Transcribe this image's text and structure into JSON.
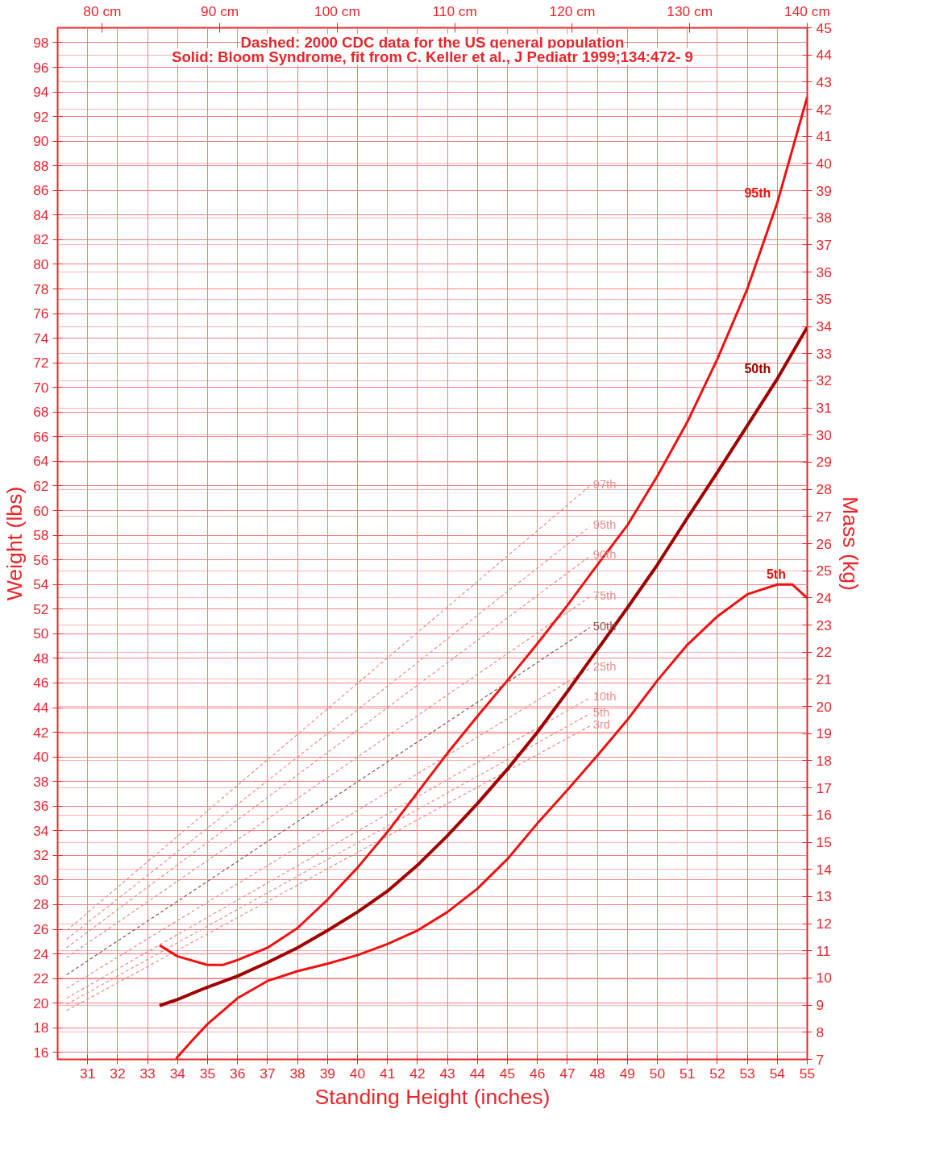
{
  "chart_data": {
    "type": "line",
    "title": "Dashed: 2000 CDC data for the US general population",
    "subtitle": "Solid: Bloom Syndrome, fit from C. Keller et al., J Pediatr 1999;134:472- 9",
    "xlabel": "Standing Height (inches)",
    "ylabel": "Weight (lbs)",
    "y2label": "Mass (kg)",
    "xlim": [
      30,
      55
    ],
    "xticks": [
      31,
      32,
      33,
      34,
      35,
      36,
      37,
      38,
      39,
      40,
      41,
      42,
      43,
      44,
      45,
      46,
      47,
      48,
      49,
      50,
      51,
      52,
      53,
      54,
      55
    ],
    "ylim": [
      15.43,
      99.21
    ],
    "yticks": [
      16,
      18,
      20,
      22,
      24,
      26,
      28,
      30,
      32,
      34,
      36,
      38,
      40,
      42,
      44,
      46,
      48,
      50,
      52,
      54,
      56,
      58,
      60,
      62,
      64,
      66,
      68,
      70,
      72,
      74,
      76,
      78,
      80,
      82,
      84,
      86,
      88,
      90,
      92,
      94,
      96,
      98
    ],
    "y2lim": [
      7,
      45
    ],
    "y2ticks": [
      7,
      8,
      9,
      10,
      11,
      12,
      13,
      14,
      15,
      16,
      17,
      18,
      19,
      20,
      21,
      22,
      23,
      24,
      25,
      26,
      27,
      28,
      29,
      30,
      31,
      32,
      33,
      34,
      35,
      36,
      37,
      38,
      39,
      40,
      41,
      42,
      43,
      44,
      45
    ],
    "x2lim": [
      76.2,
      140
    ],
    "x2ticks": [
      {
        "value": 80,
        "label": "80 cm"
      },
      {
        "value": 90,
        "label": "90 cm"
      },
      {
        "value": 100,
        "label": "100 cm"
      },
      {
        "value": 110,
        "label": "110 cm"
      },
      {
        "value": 120,
        "label": "120 cm"
      },
      {
        "value": 130,
        "label": "130 cm"
      },
      {
        "value": 140,
        "label": "140 cm"
      }
    ],
    "grid": true,
    "legend": false,
    "marker": "none",
    "series": [
      {
        "name": "97th",
        "color": "#ec8a8a",
        "line_style": "dashed",
        "x": [
          30.3,
          47.75
        ],
        "values": [
          25.9,
          62.0
        ]
      },
      {
        "name": "95th",
        "color": "#ec8a8a",
        "line_style": "dashed",
        "x": [
          30.3,
          47.75
        ],
        "values": [
          25.2,
          58.7
        ]
      },
      {
        "name": "90th",
        "color": "#ec8a8a",
        "line_style": "dashed",
        "x": [
          30.3,
          47.75
        ],
        "values": [
          24.5,
          56.3
        ]
      },
      {
        "name": "75th",
        "color": "#ec8a8a",
        "line_style": "dashed",
        "x": [
          30.3,
          47.75
        ],
        "values": [
          23.7,
          53.0
        ]
      },
      {
        "name": "50th",
        "color": "#905050",
        "line_style": "dashed",
        "x": [
          30.3,
          47.75
        ],
        "values": [
          22.3,
          50.5
        ]
      },
      {
        "name": "25th",
        "color": "#ec8a8a",
        "line_style": "dashed",
        "x": [
          30.3,
          47.75
        ],
        "values": [
          21.2,
          47.2
        ]
      },
      {
        "name": "10th",
        "color": "#ec8a8a",
        "line_style": "dashed",
        "x": [
          30.3,
          47.75
        ],
        "values": [
          20.4,
          44.8
        ]
      },
      {
        "name": "5th",
        "color": "#ec8a8a",
        "line_style": "dashed",
        "x": [
          30.3,
          47.75
        ],
        "values": [
          19.9,
          43.5
        ]
      },
      {
        "name": "3rd",
        "color": "#ec8a8a",
        "line_style": "dashed",
        "x": [
          30.3,
          47.75
        ],
        "values": [
          19.4,
          42.5
        ]
      },
      {
        "name": "95th",
        "color": "#ee1111",
        "line_style": "solid",
        "x": [
          33.4,
          34,
          35,
          35.5,
          36,
          37,
          38,
          39,
          40,
          41,
          42,
          43,
          44,
          45,
          46,
          47,
          48,
          49,
          50,
          51,
          52,
          53,
          54,
          55
        ],
        "values": [
          24.7,
          23.8,
          23.1,
          23.1,
          23.5,
          24.5,
          26.1,
          28.4,
          31.0,
          33.9,
          37.1,
          40.3,
          43.3,
          46.2,
          49.2,
          52.3,
          55.6,
          58.8,
          62.8,
          67.2,
          72.3,
          78.0,
          85.0,
          93.6
        ]
      },
      {
        "name": "50th",
        "color": "#a00000",
        "line_style": "solid",
        "x": [
          33.4,
          34,
          35,
          36,
          37,
          38,
          39,
          40,
          41,
          42,
          43,
          44,
          45,
          46,
          47,
          48,
          49,
          50,
          51,
          52,
          53,
          54,
          55
        ],
        "values": [
          19.8,
          20.3,
          21.3,
          22.2,
          23.3,
          24.5,
          25.9,
          27.4,
          29.1,
          31.2,
          33.6,
          36.2,
          39.0,
          42.0,
          45.3,
          48.7,
          52.1,
          55.6,
          59.4,
          63.1,
          66.9,
          70.7,
          74.9
        ]
      },
      {
        "name": "5th",
        "color": "#ee1111",
        "line_style": "solid",
        "x": [
          33.95,
          34.5,
          35,
          36,
          37,
          38,
          39,
          40,
          41,
          42,
          43,
          44,
          45,
          46,
          47,
          48,
          49,
          50,
          51,
          52,
          53,
          54,
          54.5,
          55
        ],
        "values": [
          15.5,
          17.0,
          18.3,
          20.4,
          21.8,
          22.6,
          23.2,
          23.9,
          24.8,
          25.9,
          27.4,
          29.3,
          31.7,
          34.6,
          37.3,
          40.1,
          43.0,
          46.2,
          49.1,
          51.4,
          53.2,
          54.0,
          54.0,
          52.9
        ]
      }
    ]
  }
}
